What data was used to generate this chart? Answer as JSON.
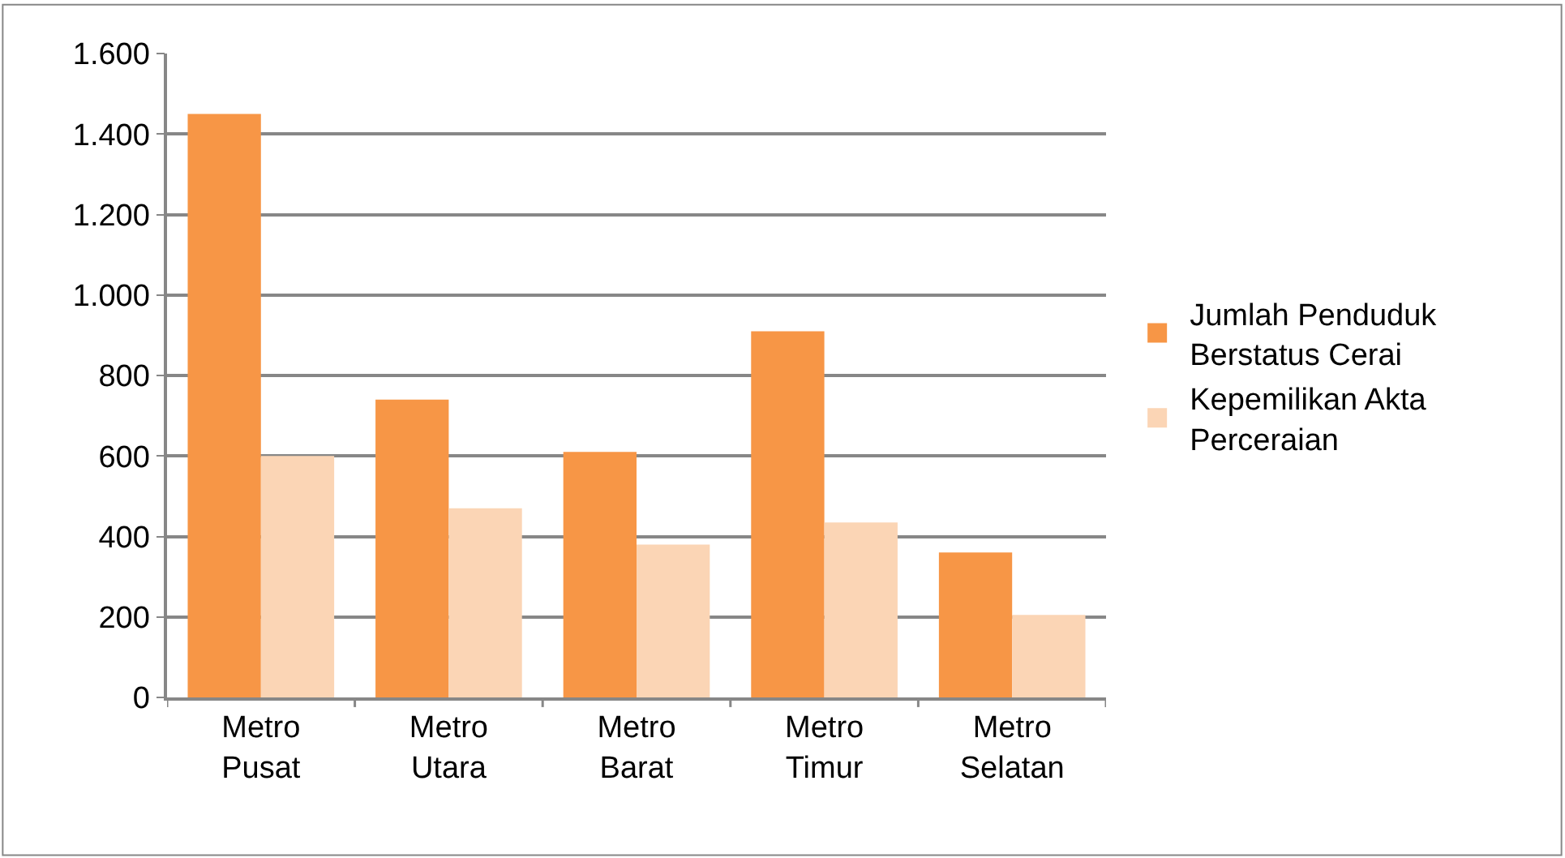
{
  "chart_data": {
    "type": "bar",
    "categories": [
      "Metro Pusat",
      "Metro Utara",
      "Metro Barat",
      "Metro Timur",
      "Metro Selatan"
    ],
    "series": [
      {
        "name": "Jumlah Penduduk Berstatus Cerai",
        "color": "#f79646",
        "values": [
          1450,
          740,
          610,
          910,
          360
        ]
      },
      {
        "name": "Kepemilikan Akta Perceraian",
        "color": "#fbd5b5",
        "values": [
          600,
          470,
          380,
          435,
          205
        ]
      }
    ],
    "ylim": [
      0,
      1600
    ],
    "yticks": [
      {
        "value": 0,
        "label": "0"
      },
      {
        "value": 200,
        "label": "200"
      },
      {
        "value": 400,
        "label": "400"
      },
      {
        "value": 600,
        "label": "600"
      },
      {
        "value": 800,
        "label": "800"
      },
      {
        "value": 1000,
        "label": "1.000"
      },
      {
        "value": 1200,
        "label": "1.200"
      },
      {
        "value": 1400,
        "label": "1.400"
      },
      {
        "value": 1600,
        "label": "1.600"
      }
    ],
    "grid": "y",
    "legend": "right"
  }
}
